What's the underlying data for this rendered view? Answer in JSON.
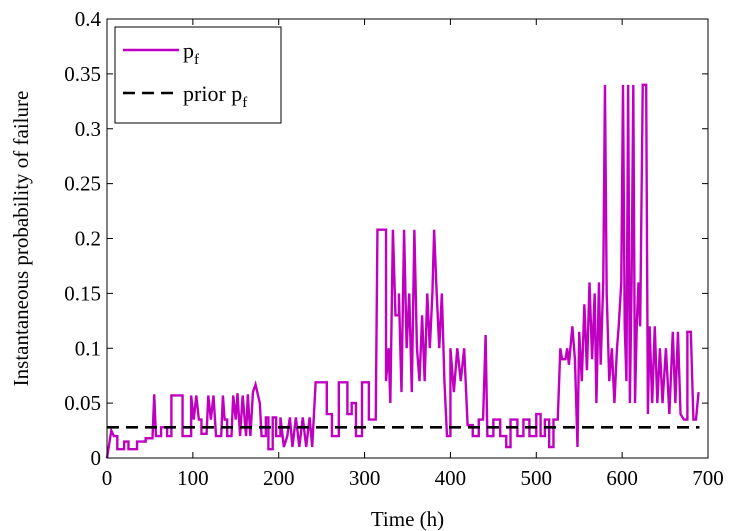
{
  "chart_data": {
    "type": "line",
    "title": "",
    "xlabel": "Time (h)",
    "ylabel": "Instantaneous probability of failure",
    "xlim": [
      0,
      700
    ],
    "ylim": [
      0,
      0.4
    ],
    "x_ticks": [
      "0",
      "100",
      "200",
      "300",
      "400",
      "500",
      "600",
      "700"
    ],
    "y_ticks": [
      "0",
      "0.05",
      "0.1",
      "0.15",
      "0.2",
      "0.25",
      "0.3",
      "0.35",
      "0.4"
    ],
    "grid": false,
    "legend_position": "top-left",
    "series": [
      {
        "name": "p",
        "name_subscript": "f",
        "color": "#c000c0",
        "style": "solid",
        "points": [
          [
            0,
            0.0
          ],
          [
            5,
            0.025
          ],
          [
            8,
            0.02
          ],
          [
            12,
            0.02
          ],
          [
            12,
            0.008
          ],
          [
            20,
            0.008
          ],
          [
            20,
            0.015
          ],
          [
            25,
            0.015
          ],
          [
            25,
            0.008
          ],
          [
            35,
            0.008
          ],
          [
            35,
            0.015
          ],
          [
            45,
            0.015
          ],
          [
            45,
            0.018
          ],
          [
            53,
            0.018
          ],
          [
            55,
            0.058
          ],
          [
            57,
            0.02
          ],
          [
            63,
            0.02
          ],
          [
            63,
            0.028
          ],
          [
            70,
            0.028
          ],
          [
            70,
            0.02
          ],
          [
            75,
            0.02
          ],
          [
            75,
            0.057
          ],
          [
            88,
            0.057
          ],
          [
            88,
            0.02
          ],
          [
            98,
            0.02
          ],
          [
            98,
            0.057
          ],
          [
            101,
            0.035
          ],
          [
            104,
            0.057
          ],
          [
            107,
            0.035
          ],
          [
            110,
            0.035
          ],
          [
            110,
            0.022
          ],
          [
            116,
            0.022
          ],
          [
            118,
            0.057
          ],
          [
            121,
            0.035
          ],
          [
            124,
            0.057
          ],
          [
            127,
            0.02
          ],
          [
            133,
            0.02
          ],
          [
            135,
            0.057
          ],
          [
            137,
            0.035
          ],
          [
            140,
            0.035
          ],
          [
            140,
            0.02
          ],
          [
            145,
            0.02
          ],
          [
            147,
            0.057
          ],
          [
            150,
            0.035
          ],
          [
            152,
            0.059
          ],
          [
            155,
            0.02
          ],
          [
            158,
            0.057
          ],
          [
            162,
            0.02
          ],
          [
            164,
            0.058
          ],
          [
            167,
            0.02
          ],
          [
            170,
            0.06
          ],
          [
            173,
            0.067
          ],
          [
            178,
            0.05
          ],
          [
            180,
            0.02
          ],
          [
            185,
            0.02
          ],
          [
            185,
            0.037
          ],
          [
            188,
            0.037
          ],
          [
            188,
            0.008
          ],
          [
            193,
            0.008
          ],
          [
            193,
            0.037
          ],
          [
            197,
            0.037
          ],
          [
            197,
            0.02
          ],
          [
            202,
            0.02
          ],
          [
            202,
            0.037
          ],
          [
            206,
            0.01
          ],
          [
            210,
            0.02
          ],
          [
            213,
            0.037
          ],
          [
            216,
            0.01
          ],
          [
            220,
            0.037
          ],
          [
            224,
            0.01
          ],
          [
            228,
            0.037
          ],
          [
            232,
            0.01
          ],
          [
            236,
            0.037
          ],
          [
            239,
            0.01
          ],
          [
            243,
            0.069
          ],
          [
            256,
            0.069
          ],
          [
            256,
            0.04
          ],
          [
            262,
            0.04
          ],
          [
            262,
            0.02
          ],
          [
            270,
            0.02
          ],
          [
            270,
            0.069
          ],
          [
            280,
            0.069
          ],
          [
            280,
            0.04
          ],
          [
            285,
            0.04
          ],
          [
            285,
            0.05
          ],
          [
            290,
            0.05
          ],
          [
            290,
            0.02
          ],
          [
            297,
            0.02
          ],
          [
            297,
            0.069
          ],
          [
            305,
            0.069
          ],
          [
            305,
            0.035
          ],
          [
            313,
            0.035
          ],
          [
            315,
            0.208
          ],
          [
            325,
            0.208
          ],
          [
            325,
            0.07
          ],
          [
            328,
            0.1
          ],
          [
            330,
            0.05
          ],
          [
            333,
            0.208
          ],
          [
            336,
            0.13
          ],
          [
            340,
            0.13
          ],
          [
            340,
            0.15
          ],
          [
            343,
            0.06
          ],
          [
            346,
            0.208
          ],
          [
            349,
            0.1
          ],
          [
            352,
            0.15
          ],
          [
            355,
            0.06
          ],
          [
            358,
            0.208
          ],
          [
            361,
            0.1
          ],
          [
            364,
            0.07
          ],
          [
            367,
            0.13
          ],
          [
            370,
            0.07
          ],
          [
            373,
            0.15
          ],
          [
            376,
            0.1
          ],
          [
            379,
            0.15
          ],
          [
            381,
            0.208
          ],
          [
            384,
            0.15
          ],
          [
            387,
            0.1
          ],
          [
            390,
            0.15
          ],
          [
            393,
            0.07
          ],
          [
            396,
            0.02
          ],
          [
            400,
            0.02
          ],
          [
            400,
            0.1
          ],
          [
            404,
            0.06
          ],
          [
            408,
            0.1
          ],
          [
            412,
            0.07
          ],
          [
            416,
            0.1
          ],
          [
            420,
            0.03
          ],
          [
            426,
            0.03
          ],
          [
            426,
            0.02
          ],
          [
            433,
            0.02
          ],
          [
            433,
            0.035
          ],
          [
            438,
            0.035
          ],
          [
            441,
            0.112
          ],
          [
            443,
            0.02
          ],
          [
            450,
            0.02
          ],
          [
            450,
            0.035
          ],
          [
            458,
            0.035
          ],
          [
            458,
            0.02
          ],
          [
            465,
            0.02
          ],
          [
            465,
            0.01
          ],
          [
            470,
            0.01
          ],
          [
            470,
            0.035
          ],
          [
            478,
            0.035
          ],
          [
            478,
            0.02
          ],
          [
            485,
            0.02
          ],
          [
            485,
            0.035
          ],
          [
            492,
            0.035
          ],
          [
            492,
            0.02
          ],
          [
            500,
            0.02
          ],
          [
            500,
            0.04
          ],
          [
            505,
            0.04
          ],
          [
            505,
            0.02
          ],
          [
            510,
            0.02
          ],
          [
            510,
            0.035
          ],
          [
            515,
            0.035
          ],
          [
            515,
            0.01
          ],
          [
            520,
            0.01
          ],
          [
            520,
            0.035
          ],
          [
            525,
            0.035
          ],
          [
            528,
            0.1
          ],
          [
            530,
            0.09
          ],
          [
            534,
            0.09
          ],
          [
            536,
            0.1
          ],
          [
            538,
            0.085
          ],
          [
            542,
            0.12
          ],
          [
            545,
            0.09
          ],
          [
            548,
            0.01
          ],
          [
            550,
            0.115
          ],
          [
            553,
            0.07
          ],
          [
            556,
            0.14
          ],
          [
            559,
            0.08
          ],
          [
            562,
            0.16
          ],
          [
            565,
            0.09
          ],
          [
            568,
            0.15
          ],
          [
            570,
            0.05
          ],
          [
            573,
            0.16
          ],
          [
            575,
            0.085
          ],
          [
            578,
            0.16
          ],
          [
            580,
            0.34
          ],
          [
            582,
            0.15
          ],
          [
            585,
            0.07
          ],
          [
            588,
            0.1
          ],
          [
            591,
            0.05
          ],
          [
            594,
            0.1
          ],
          [
            596,
            0.12
          ],
          [
            599,
            0.16
          ],
          [
            601,
            0.34
          ],
          [
            603,
            0.12
          ],
          [
            605,
            0.07
          ],
          [
            607,
            0.34
          ],
          [
            609,
            0.05
          ],
          [
            611,
            0.16
          ],
          [
            613,
            0.34
          ],
          [
            615,
            0.05
          ],
          [
            617,
            0.12
          ],
          [
            619,
            0.16
          ],
          [
            621,
            0.12
          ],
          [
            624,
            0.34
          ],
          [
            628,
            0.34
          ],
          [
            630,
            0.04
          ],
          [
            632,
            0.12
          ],
          [
            635,
            0.05
          ],
          [
            638,
            0.12
          ],
          [
            641,
            0.05
          ],
          [
            644,
            0.1
          ],
          [
            647,
            0.05
          ],
          [
            651,
            0.1
          ],
          [
            655,
            0.04
          ],
          [
            659,
            0.115
          ],
          [
            662,
            0.05
          ],
          [
            665,
            0.115
          ],
          [
            668,
            0.04
          ],
          [
            672,
            0.035
          ],
          [
            676,
            0.035
          ],
          [
            676,
            0.115
          ],
          [
            680,
            0.115
          ],
          [
            683,
            0.035
          ],
          [
            686,
            0.035
          ],
          [
            689,
            0.06
          ]
        ]
      },
      {
        "name": "prior p",
        "name_subscript": "f",
        "color": "#000000",
        "style": "dashed",
        "points": [
          [
            0,
            0.028
          ],
          [
            690,
            0.028
          ]
        ]
      }
    ]
  }
}
